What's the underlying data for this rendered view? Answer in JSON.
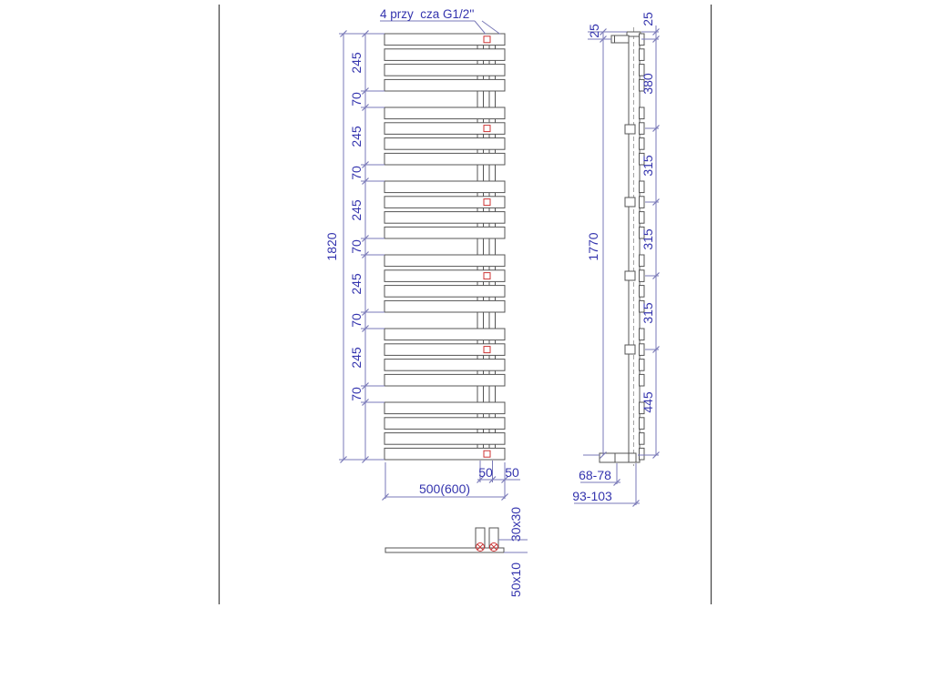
{
  "drawing": {
    "top_note": "4 przy  cza G1/2''",
    "front": {
      "overall_height": "1820",
      "chain": [
        "245",
        "70",
        "245",
        "70",
        "245",
        "70",
        "245",
        "70",
        "245",
        "70"
      ],
      "width": "500(600)",
      "offset_dims": [
        "50",
        "50"
      ]
    },
    "side": {
      "overall_height": "1770",
      "top_offset": "25",
      "chain": [
        "25",
        "380",
        "315",
        "315",
        "315",
        "445"
      ],
      "wall_dims": [
        "68-78",
        "93-103"
      ]
    },
    "detail": {
      "tube_label": "30x30",
      "bar_label": "50x10"
    },
    "colors": {
      "dimension_text": "#3434ae",
      "dimension_line": "#7a7ab8",
      "drawing_line": "#545454",
      "accent_red": "#cc3333",
      "centerline": "#9a9a9a"
    }
  }
}
